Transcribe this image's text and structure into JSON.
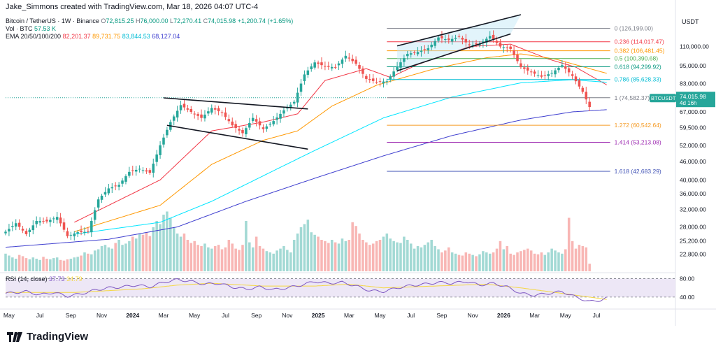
{
  "header": {
    "credit": "Jake_Simmons created with TradingView.com, Mar 18, 2026 04:07 UTC-4",
    "symbol": "Bitcoin / TetherUS · 1W · Binance",
    "ohlc": {
      "o_label": "O",
      "o": "72,815.25",
      "h_label": "H",
      "h": "76,000.00",
      "l_label": "L",
      "l": "72,270.41",
      "c_label": "C",
      "c": "74,015.98",
      "change": "+1,200.74 (+1.65%)"
    },
    "vol_label": "Vol · BTC",
    "vol_value": "57.53 K",
    "ema_label": "EMA 20/50/100/200",
    "ema_values": [
      "82,201.37",
      "89,731.75",
      "83,844.53",
      "68,127.04"
    ]
  },
  "colors": {
    "up": "#26a69a",
    "down": "#ef5350",
    "up_vol": "#92d2cc",
    "down_vol": "#f7a9a7",
    "ema20": "#f23645",
    "ema50": "#ff9800",
    "ema100": "#00e5ff",
    "ema200": "#3f3fcf",
    "rsi": "#7e57c2",
    "rsi_ma": "#f5d742",
    "rsi_band": "#ede7f6"
  },
  "chart_data": {
    "type": "candlestick",
    "symbol": "BTCUSDT",
    "timeframe": "1W",
    "price_axis_label": "USDT",
    "y_ticks": [
      110000,
      95000,
      83000,
      67000,
      59500,
      52000,
      46000,
      40000,
      36000,
      32000,
      28000,
      25200,
      22800
    ],
    "y_tick_labels": [
      "110,000.00",
      "95,000.00",
      "83,000.00",
      "67,000.00",
      "59,500.00",
      "52,000.00",
      "46,000.00",
      "40,000.00",
      "36,000.00",
      "32,000.00",
      "28,000.00",
      "25,200.00",
      "22,800.00"
    ],
    "x_tick_labels": [
      "May",
      "Jul",
      "Sep",
      "Nov",
      "2024",
      "Mar",
      "May",
      "Jul",
      "Sep",
      "Nov",
      "2025",
      "Mar",
      "May",
      "Jul",
      "Sep",
      "Nov",
      "2026",
      "Mar",
      "May",
      "Jul"
    ],
    "last_price": {
      "label": "BTCUSDT",
      "value": "74,015.98",
      "countdown": "4d 16h"
    },
    "fibonacci": [
      {
        "level": "0",
        "price": "126,199.00"
      },
      {
        "level": "0.236",
        "price": "114,017.47"
      },
      {
        "level": "0.382",
        "price": "106,481.45"
      },
      {
        "level": "0.5",
        "price": "100,390.68"
      },
      {
        "level": "0.618",
        "price": "94,299.92"
      },
      {
        "level": "0.786",
        "price": "85,628.33"
      },
      {
        "level": "1",
        "price": "74,582.37"
      },
      {
        "level": "1.272",
        "price": "60,542.64"
      },
      {
        "level": "1.414",
        "price": "53,213.08"
      },
      {
        "level": "1.618",
        "price": "42,683.29"
      }
    ],
    "fib_values": [
      126199,
      114017.47,
      106481.45,
      100390.68,
      94299.92,
      85628.33,
      74582.37,
      60542.64,
      53213.08,
      42683.29
    ],
    "close_path": [
      [
        0,
        27000
      ],
      [
        3,
        28800
      ],
      [
        6,
        26500
      ],
      [
        9,
        29300
      ],
      [
        12,
        29200
      ],
      [
        15,
        30200
      ],
      [
        18,
        26100
      ],
      [
        21,
        26900
      ],
      [
        24,
        27000
      ],
      [
        27,
        34500
      ],
      [
        30,
        37500
      ],
      [
        33,
        38500
      ],
      [
        36,
        42500
      ],
      [
        39,
        43500
      ],
      [
        42,
        42200
      ],
      [
        45,
        52000
      ],
      [
        48,
        62000
      ],
      [
        51,
        70500
      ],
      [
        54,
        67000
      ],
      [
        57,
        64000
      ],
      [
        60,
        69000
      ],
      [
        63,
        66500
      ],
      [
        66,
        60500
      ],
      [
        69,
        57000
      ],
      [
        72,
        64000
      ],
      [
        75,
        58800
      ],
      [
        78,
        62500
      ],
      [
        81,
        67800
      ],
      [
        84,
        72300
      ],
      [
        87,
        89000
      ],
      [
        90,
        97500
      ],
      [
        93,
        94500
      ],
      [
        96,
        94000
      ],
      [
        99,
        102500
      ],
      [
        102,
        96500
      ],
      [
        105,
        86000
      ],
      [
        108,
        84000
      ],
      [
        111,
        84500
      ],
      [
        114,
        94500
      ],
      [
        117,
        104000
      ],
      [
        120,
        105500
      ],
      [
        123,
        108500
      ],
      [
        126,
        117800
      ],
      [
        129,
        115500
      ],
      [
        132,
        118500
      ],
      [
        135,
        111000
      ],
      [
        138,
        112000
      ],
      [
        141,
        119000
      ],
      [
        144,
        110000
      ],
      [
        147,
        108000
      ],
      [
        150,
        94000
      ],
      [
        153,
        90500
      ],
      [
        156,
        87500
      ],
      [
        159,
        90000
      ],
      [
        162,
        95500
      ],
      [
        165,
        88000
      ],
      [
        168,
        78000
      ],
      [
        170,
        69500
      ],
      [
        172,
        66500
      ],
      [
        174,
        73000
      ],
      [
        175,
        74015.98
      ]
    ],
    "ema_paths": {
      "ema20": [
        [
          20,
          29000
        ],
        [
          45,
          40000
        ],
        [
          60,
          58000
        ],
        [
          75,
          62000
        ],
        [
          85,
          66000
        ],
        [
          93,
          85000
        ],
        [
          105,
          93000
        ],
        [
          112,
          87000
        ],
        [
          120,
          96000
        ],
        [
          135,
          110000
        ],
        [
          147,
          112000
        ],
        [
          158,
          100000
        ],
        [
          166,
          94000
        ],
        [
          175,
          82201.37
        ]
      ],
      "ema50": [
        [
          20,
          27000
        ],
        [
          45,
          33000
        ],
        [
          60,
          45000
        ],
        [
          75,
          54000
        ],
        [
          85,
          58000
        ],
        [
          95,
          70000
        ],
        [
          108,
          82000
        ],
        [
          125,
          93000
        ],
        [
          140,
          101000
        ],
        [
          150,
          104000
        ],
        [
          160,
          100000
        ],
        [
          175,
          89731.75
        ]
      ],
      "ema100": [
        [
          20,
          26500
        ],
        [
          45,
          29000
        ],
        [
          60,
          34000
        ],
        [
          80,
          44000
        ],
        [
          90,
          50000
        ],
        [
          110,
          64000
        ],
        [
          130,
          75000
        ],
        [
          150,
          83500
        ],
        [
          165,
          85500
        ],
        [
          175,
          83844.53
        ]
      ],
      "ema200": [
        [
          0,
          24000
        ],
        [
          30,
          25500
        ],
        [
          50,
          28000
        ],
        [
          70,
          34000
        ],
        [
          90,
          40500
        ],
        [
          110,
          48000
        ],
        [
          130,
          56000
        ],
        [
          150,
          63000
        ],
        [
          165,
          67000
        ],
        [
          175,
          68127.04
        ]
      ]
    },
    "trendlines": [
      {
        "name": "wedge-upper",
        "from": [
          46,
          74500
        ],
        "to": [
          88,
          68500
        ]
      },
      {
        "name": "wedge-lower",
        "from": [
          47,
          60500
        ],
        "to": [
          88,
          50500
        ]
      },
      {
        "name": "channel-upper",
        "from": [
          114,
          110500
        ],
        "to": [
          150,
          140000
        ]
      },
      {
        "name": "channel-lower",
        "from": [
          114,
          91500
        ],
        "to": [
          147,
          121000
        ]
      }
    ],
    "fib_x_range": [
      111,
      176
    ],
    "x_range": [
      0,
      195
    ],
    "ylim": [
      20000,
      150000
    ],
    "volume": [
      0.28,
      0.25,
      0.22,
      0.2,
      0.26,
      0.24,
      0.21,
      0.19,
      0.22,
      0.2,
      0.18,
      0.23,
      0.2,
      0.19,
      0.21,
      0.22,
      0.18,
      0.17,
      0.19,
      0.2,
      0.22,
      0.23,
      0.25,
      0.3,
      0.28,
      0.27,
      0.33,
      0.35,
      0.4,
      0.42,
      0.38,
      0.36,
      0.45,
      0.5,
      0.42,
      0.44,
      0.48,
      0.55,
      0.52,
      0.6,
      0.58,
      0.62,
      0.56,
      0.7,
      0.8,
      0.75,
      0.9,
      0.95,
      0.85,
      0.7,
      0.6,
      0.55,
      0.6,
      0.5,
      0.45,
      0.48,
      0.42,
      0.4,
      0.44,
      0.38,
      0.36,
      0.4,
      0.42,
      0.35,
      0.38,
      0.5,
      0.44,
      0.36,
      0.34,
      0.42,
      0.8,
      0.46,
      0.38,
      0.55,
      0.4,
      0.36,
      0.32,
      0.3,
      0.28,
      0.33,
      0.36,
      0.4,
      0.34,
      0.3,
      0.5,
      0.6,
      0.7,
      0.75,
      0.82,
      0.62,
      0.58,
      0.55,
      0.5,
      0.48,
      0.45,
      0.5,
      0.46,
      0.44,
      0.52,
      0.48,
      0.5,
      0.78,
      0.72,
      0.6,
      0.5,
      0.46,
      0.42,
      0.44,
      0.48,
      0.5,
      0.55,
      0.6,
      0.52,
      0.48,
      0.46,
      0.45,
      0.55,
      0.5,
      0.44,
      0.36,
      0.4,
      0.38,
      0.42,
      0.46,
      0.5,
      0.4,
      0.35,
      0.3,
      0.33,
      0.38,
      0.3,
      0.28,
      0.26,
      0.25,
      0.3,
      0.28,
      0.26,
      0.24,
      0.27,
      0.32,
      0.3,
      0.28,
      0.3,
      0.36,
      0.48,
      0.35,
      0.4,
      0.28,
      0.26,
      0.3,
      0.32,
      0.34,
      0.36,
      0.33,
      0.28,
      0.27,
      0.3,
      0.26,
      0.3,
      0.36,
      0.33,
      0.3,
      0.28,
      0.35,
      0.85,
      0.48,
      0.36,
      0.42,
      0.4,
      0.38,
      0.12
    ],
    "rsi": {
      "label": "RSI (14, close)",
      "value": "37.73",
      "ma_value": "34.79",
      "levels": [
        80,
        40
      ],
      "level_labels": [
        "80.00",
        "40.00"
      ],
      "series": [
        [
          0,
          48
        ],
        [
          6,
          52
        ],
        [
          10,
          45
        ],
        [
          14,
          50
        ],
        [
          18,
          42
        ],
        [
          22,
          47
        ],
        [
          26,
          55
        ],
        [
          30,
          60
        ],
        [
          34,
          62
        ],
        [
          38,
          66
        ],
        [
          42,
          62
        ],
        [
          46,
          72
        ],
        [
          50,
          78
        ],
        [
          54,
          74
        ],
        [
          58,
          68
        ],
        [
          62,
          70
        ],
        [
          66,
          62
        ],
        [
          70,
          57
        ],
        [
          74,
          62
        ],
        [
          78,
          56
        ],
        [
          82,
          60
        ],
        [
          86,
          66
        ],
        [
          90,
          74
        ],
        [
          94,
          70
        ],
        [
          98,
          72
        ],
        [
          102,
          64
        ],
        [
          106,
          54
        ],
        [
          110,
          52
        ],
        [
          114,
          60
        ],
        [
          118,
          65
        ],
        [
          122,
          68
        ],
        [
          126,
          72
        ],
        [
          130,
          70
        ],
        [
          134,
          74
        ],
        [
          138,
          66
        ],
        [
          142,
          70
        ],
        [
          146,
          62
        ],
        [
          150,
          48
        ],
        [
          154,
          44
        ],
        [
          158,
          48
        ],
        [
          162,
          52
        ],
        [
          166,
          40
        ],
        [
          170,
          30
        ],
        [
          173,
          33
        ],
        [
          175,
          37.73
        ]
      ],
      "ma_series": [
        [
          0,
          50
        ],
        [
          20,
          50
        ],
        [
          40,
          58
        ],
        [
          50,
          66
        ],
        [
          60,
          70
        ],
        [
          75,
          64
        ],
        [
          90,
          64
        ],
        [
          100,
          68
        ],
        [
          110,
          60
        ],
        [
          125,
          64
        ],
        [
          140,
          68
        ],
        [
          150,
          60
        ],
        [
          160,
          50
        ],
        [
          168,
          42
        ],
        [
          175,
          34.79
        ]
      ]
    }
  },
  "footer": {
    "brand": "TradingView"
  }
}
